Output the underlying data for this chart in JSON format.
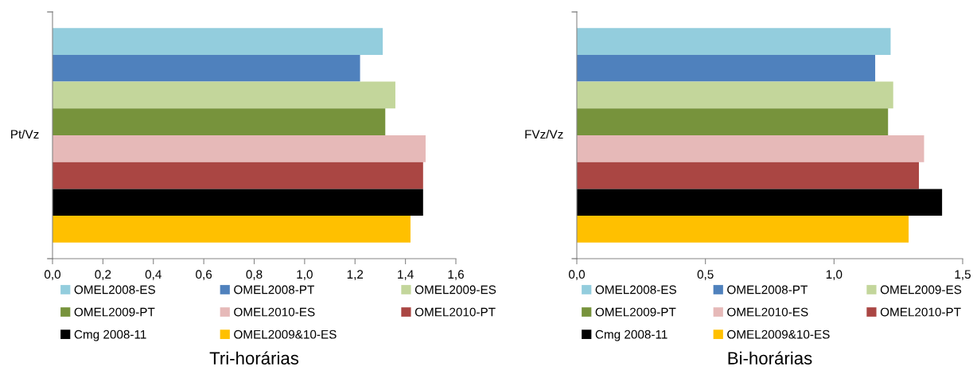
{
  "chart_data": [
    {
      "type": "bar",
      "orientation": "horizontal",
      "title": "Tri-horárias",
      "ylabel": "Pt/Vz",
      "categories": [
        null,
        null,
        null,
        null,
        null,
        null,
        null,
        null
      ],
      "series": [
        {
          "name": "OMEL2008-ES",
          "color": "#93cddd",
          "values": [
            1.31,
            null,
            null,
            null,
            null,
            null,
            null,
            null
          ]
        },
        {
          "name": "OMEL2008-PT",
          "color": "#4f81bd",
          "values": [
            null,
            1.22,
            null,
            null,
            null,
            null,
            null,
            null
          ]
        },
        {
          "name": "OMEL2009-ES",
          "color": "#c3d69b",
          "values": [
            null,
            null,
            1.36,
            null,
            null,
            null,
            null,
            null
          ]
        },
        {
          "name": "OMEL2009-PT",
          "color": "#77933c",
          "values": [
            null,
            null,
            null,
            1.32,
            null,
            null,
            null,
            null
          ]
        },
        {
          "name": "OMEL2010-ES",
          "color": "#e6b9b8",
          "values": [
            null,
            null,
            null,
            null,
            1.48,
            null,
            null,
            null
          ]
        },
        {
          "name": "OMEL2010-PT",
          "color": "#aa4643",
          "values": [
            null,
            null,
            null,
            null,
            null,
            1.47,
            null,
            null
          ]
        },
        {
          "name": "Cmg 2008-11",
          "color": "#000000",
          "values": [
            null,
            null,
            null,
            null,
            null,
            null,
            1.47,
            null
          ]
        },
        {
          "name": "OMEL2009&10-ES",
          "color": "#ffc000",
          "values": [
            null,
            null,
            null,
            null,
            null,
            null,
            null,
            1.42
          ]
        }
      ],
      "xlim": [
        0,
        1.6
      ],
      "xticks": [
        {
          "value": 0,
          "label": "0,0"
        },
        {
          "value": 0.2,
          "label": "0,2"
        },
        {
          "value": 0.4,
          "label": "0,4"
        },
        {
          "value": 0.6,
          "label": "0,6"
        },
        {
          "value": 0.8,
          "label": "0,8"
        },
        {
          "value": 1.0,
          "label": "1,0"
        },
        {
          "value": 1.2,
          "label": "1,2"
        },
        {
          "value": 1.4,
          "label": "1,4"
        },
        {
          "value": 1.6,
          "label": "1,6"
        }
      ],
      "grid": false,
      "legend": "bottom"
    },
    {
      "type": "bar",
      "orientation": "horizontal",
      "title": "Bi-horárias",
      "ylabel": "FVz/Vz",
      "categories": [
        null,
        null,
        null,
        null,
        null,
        null,
        null,
        null
      ],
      "series": [
        {
          "name": "OMEL2008-ES",
          "color": "#93cddd",
          "values": [
            1.22,
            null,
            null,
            null,
            null,
            null,
            null,
            null
          ]
        },
        {
          "name": "OMEL2008-PT",
          "color": "#4f81bd",
          "values": [
            null,
            1.16,
            null,
            null,
            null,
            null,
            null,
            null
          ]
        },
        {
          "name": "OMEL2009-ES",
          "color": "#c3d69b",
          "values": [
            null,
            null,
            1.23,
            null,
            null,
            null,
            null,
            null
          ]
        },
        {
          "name": "OMEL2009-PT",
          "color": "#77933c",
          "values": [
            null,
            null,
            null,
            1.21,
            null,
            null,
            null,
            null
          ]
        },
        {
          "name": "OMEL2010-ES",
          "color": "#e6b9b8",
          "values": [
            null,
            null,
            null,
            null,
            1.35,
            null,
            null,
            null
          ]
        },
        {
          "name": "OMEL2010-PT",
          "color": "#aa4643",
          "values": [
            null,
            null,
            null,
            null,
            null,
            1.33,
            null,
            null
          ]
        },
        {
          "name": "Cmg 2008-11",
          "color": "#000000",
          "values": [
            null,
            null,
            null,
            null,
            null,
            null,
            1.42,
            null
          ]
        },
        {
          "name": "OMEL2009&10-ES",
          "color": "#ffc000",
          "values": [
            null,
            null,
            null,
            null,
            null,
            null,
            null,
            1.29
          ]
        }
      ],
      "xlim": [
        0,
        1.5
      ],
      "xticks": [
        {
          "value": 0,
          "label": "0,0"
        },
        {
          "value": 0.5,
          "label": "0,5"
        },
        {
          "value": 1.0,
          "label": "1,0"
        },
        {
          "value": 1.5,
          "label": "1,5"
        }
      ],
      "grid": false,
      "legend": "bottom"
    }
  ]
}
